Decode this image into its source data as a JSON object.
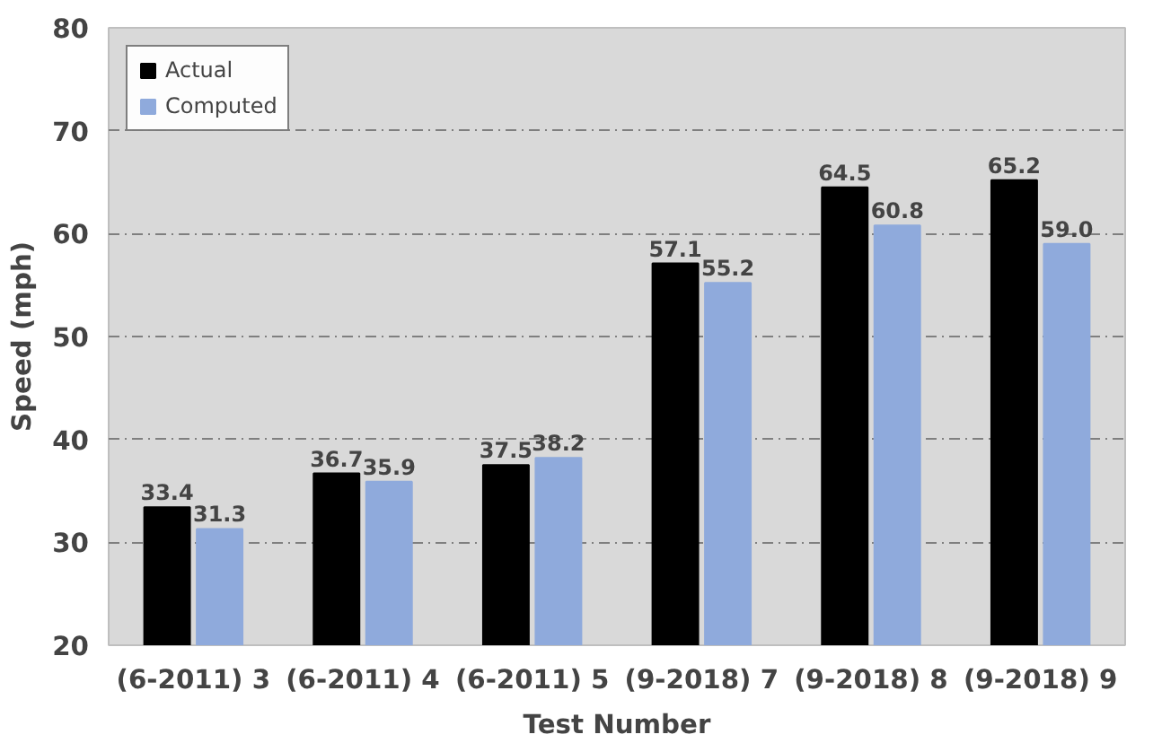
{
  "chart_data": {
    "type": "bar",
    "xlabel": "Test Number",
    "ylabel": "Speed (mph)",
    "categories": [
      "(6-2011) 3",
      "(6-2011) 4",
      "(6-2011) 5",
      "(9-2018) 7",
      "(9-2018) 8",
      "(9-2018) 9"
    ],
    "series": [
      {
        "name": "Actual",
        "color": "#000000",
        "values": [
          33.4,
          36.7,
          37.5,
          57.1,
          64.5,
          65.2
        ],
        "value_labels": [
          "33.4",
          "36.7",
          "37.5",
          "57.1",
          "64.5",
          "65.2"
        ]
      },
      {
        "name": "Computed",
        "color": "#8faadc",
        "values": [
          31.3,
          35.9,
          38.2,
          55.2,
          60.8,
          59.0
        ],
        "value_labels": [
          "31.3",
          "35.9",
          "38.2",
          "55.2",
          "60.8",
          "59.0"
        ]
      }
    ],
    "ylim": [
      20,
      80
    ],
    "yticks": [
      20,
      30,
      40,
      50,
      60,
      70,
      80
    ],
    "grid": "y",
    "legend": "top left"
  }
}
